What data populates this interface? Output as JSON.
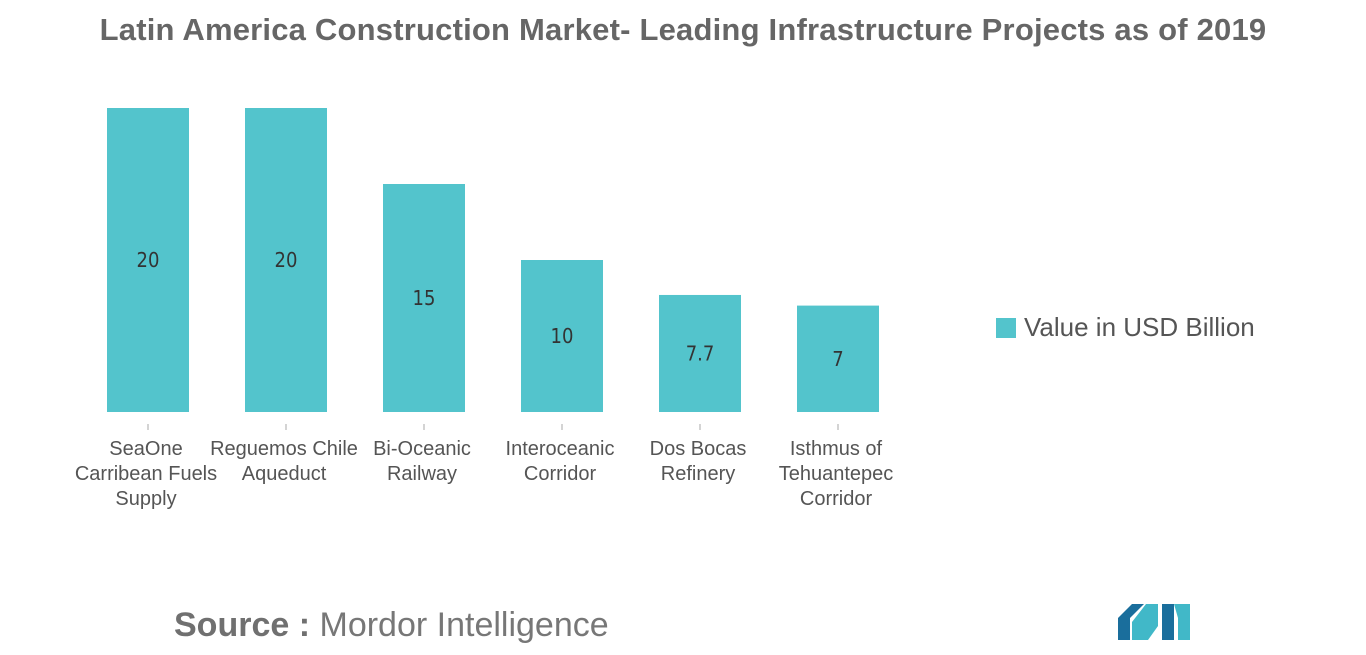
{
  "chart_data": {
    "type": "bar",
    "title": "Latin America Construction Market- Leading Infrastructure Projects as of 2019",
    "categories": [
      "SeaOne Carribean Fuels Supply",
      "Reguemos Chile Aqueduct",
      "Bi-Oceanic Railway",
      "Interoceanic Corridor",
      "Dos Bocas Refinery",
      "Isthmus of Tehuantepec Corridor"
    ],
    "category_lines": [
      [
        "SeaOne",
        "Carribean Fuels",
        "Supply"
      ],
      [
        "Reguemos Chile",
        "Aqueduct"
      ],
      [
        "Bi-Oceanic",
        "Railway"
      ],
      [
        "Interoceanic",
        "Corridor"
      ],
      [
        "Dos Bocas",
        "Refinery"
      ],
      [
        "Isthmus of",
        "Tehuantepec",
        "Corridor"
      ]
    ],
    "series": [
      {
        "name": "Value in USD Billion",
        "values": [
          20,
          20,
          15,
          10,
          7.7,
          7
        ],
        "labels": [
          "20",
          "20",
          "15",
          "10",
          "7.7",
          "7"
        ]
      }
    ],
    "ylim": [
      0,
      20
    ],
    "grid": false,
    "legend_position": "right",
    "bar_color": "#53c4cc"
  },
  "source": {
    "prefix": "Source :",
    "text": "Mordor Intelligence"
  },
  "colors": {
    "bar": "#53c4cc",
    "title": "#666666",
    "logo_dark": "#1a6e9c",
    "logo_light": "#41b8c8"
  }
}
